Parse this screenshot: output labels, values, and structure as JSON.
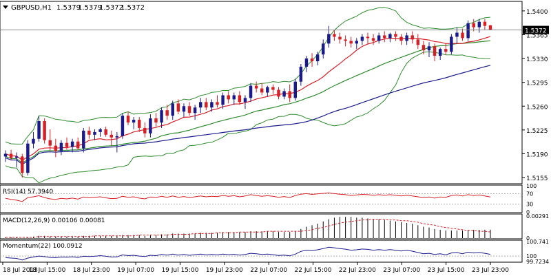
{
  "chart_data": {
    "type": "candlestick",
    "symbol": "GBPUSD,H1",
    "ohlc_header": [
      "1.5379",
      "1.5379",
      "1.5372",
      "1.5372"
    ],
    "last_price_label": "1.5372",
    "y_ticks": [
      "1.5400",
      "1.5365",
      "1.5330",
      "1.5295",
      "1.5260",
      "1.5225",
      "1.5190",
      "1.5155"
    ],
    "ylim": [
      1.5148,
      1.5412
    ],
    "time_labels": [
      "18 Jul 2013",
      "18 Jul 15:00",
      "18 Jul 23:00",
      "19 Jul 07:00",
      "19 Jul 15:00",
      "19 Jul 23:00",
      "22 Jul 07:00",
      "22 Jul 15:00",
      "22 Jul 23:00",
      "23 Jul 07:00",
      "23 Jul 15:00",
      "23 Jul 23:00"
    ],
    "candles": [
      {
        "o": 1.5186,
        "h": 1.5195,
        "l": 1.5178,
        "c": 1.519
      },
      {
        "o": 1.519,
        "h": 1.5196,
        "l": 1.518,
        "c": 1.5184
      },
      {
        "o": 1.5184,
        "h": 1.5192,
        "l": 1.517,
        "c": 1.5186
      },
      {
        "o": 1.5186,
        "h": 1.519,
        "l": 1.5155,
        "c": 1.5162
      },
      {
        "o": 1.5162,
        "h": 1.521,
        "l": 1.5158,
        "c": 1.5205
      },
      {
        "o": 1.5205,
        "h": 1.5222,
        "l": 1.5198,
        "c": 1.5212
      },
      {
        "o": 1.5212,
        "h": 1.5245,
        "l": 1.5208,
        "c": 1.5238
      },
      {
        "o": 1.5238,
        "h": 1.5242,
        "l": 1.5205,
        "c": 1.521
      },
      {
        "o": 1.521,
        "h": 1.5226,
        "l": 1.5195,
        "c": 1.5202
      },
      {
        "o": 1.5202,
        "h": 1.5212,
        "l": 1.5185,
        "c": 1.5194
      },
      {
        "o": 1.5194,
        "h": 1.521,
        "l": 1.5188,
        "c": 1.5206
      },
      {
        "o": 1.5206,
        "h": 1.5214,
        "l": 1.5196,
        "c": 1.52
      },
      {
        "o": 1.52,
        "h": 1.5212,
        "l": 1.5192,
        "c": 1.5208
      },
      {
        "o": 1.5208,
        "h": 1.5214,
        "l": 1.5196,
        "c": 1.5198
      },
      {
        "o": 1.5198,
        "h": 1.5228,
        "l": 1.5192,
        "c": 1.5224
      },
      {
        "o": 1.5224,
        "h": 1.523,
        "l": 1.5212,
        "c": 1.5218
      },
      {
        "o": 1.5218,
        "h": 1.5226,
        "l": 1.521,
        "c": 1.5222
      },
      {
        "o": 1.5222,
        "h": 1.5228,
        "l": 1.5215,
        "c": 1.5226
      },
      {
        "o": 1.5226,
        "h": 1.523,
        "l": 1.5215,
        "c": 1.5218
      },
      {
        "o": 1.5218,
        "h": 1.5224,
        "l": 1.5202,
        "c": 1.5214
      },
      {
        "o": 1.5214,
        "h": 1.5222,
        "l": 1.5192,
        "c": 1.5216
      },
      {
        "o": 1.5216,
        "h": 1.525,
        "l": 1.5212,
        "c": 1.5246
      },
      {
        "o": 1.5246,
        "h": 1.5252,
        "l": 1.5232,
        "c": 1.5236
      },
      {
        "o": 1.5236,
        "h": 1.5244,
        "l": 1.5226,
        "c": 1.524
      },
      {
        "o": 1.524,
        "h": 1.5244,
        "l": 1.5222,
        "c": 1.5228
      },
      {
        "o": 1.5228,
        "h": 1.5236,
        "l": 1.5214,
        "c": 1.522
      },
      {
        "o": 1.522,
        "h": 1.5248,
        "l": 1.5214,
        "c": 1.5242
      },
      {
        "o": 1.5242,
        "h": 1.525,
        "l": 1.523,
        "c": 1.5236
      },
      {
        "o": 1.5236,
        "h": 1.5258,
        "l": 1.5228,
        "c": 1.5254
      },
      {
        "o": 1.5254,
        "h": 1.5262,
        "l": 1.524,
        "c": 1.5246
      },
      {
        "o": 1.5246,
        "h": 1.5268,
        "l": 1.524,
        "c": 1.5264
      },
      {
        "o": 1.5264,
        "h": 1.527,
        "l": 1.5248,
        "c": 1.5252
      },
      {
        "o": 1.5252,
        "h": 1.5264,
        "l": 1.5244,
        "c": 1.526
      },
      {
        "o": 1.526,
        "h": 1.5266,
        "l": 1.5246,
        "c": 1.525
      },
      {
        "o": 1.525,
        "h": 1.5262,
        "l": 1.524,
        "c": 1.5258
      },
      {
        "o": 1.5258,
        "h": 1.5272,
        "l": 1.525,
        "c": 1.5266
      },
      {
        "o": 1.5266,
        "h": 1.5272,
        "l": 1.5254,
        "c": 1.5258
      },
      {
        "o": 1.5258,
        "h": 1.527,
        "l": 1.5252,
        "c": 1.5266
      },
      {
        "o": 1.5266,
        "h": 1.5276,
        "l": 1.5258,
        "c": 1.5262
      },
      {
        "o": 1.5262,
        "h": 1.528,
        "l": 1.5256,
        "c": 1.5276
      },
      {
        "o": 1.5276,
        "h": 1.5282,
        "l": 1.5264,
        "c": 1.527
      },
      {
        "o": 1.527,
        "h": 1.528,
        "l": 1.5262,
        "c": 1.5276
      },
      {
        "o": 1.5276,
        "h": 1.5282,
        "l": 1.5262,
        "c": 1.5266
      },
      {
        "o": 1.5266,
        "h": 1.5276,
        "l": 1.5256,
        "c": 1.5272
      },
      {
        "o": 1.5272,
        "h": 1.5294,
        "l": 1.5266,
        "c": 1.529
      },
      {
        "o": 1.529,
        "h": 1.5296,
        "l": 1.528,
        "c": 1.5286
      },
      {
        "o": 1.5286,
        "h": 1.5294,
        "l": 1.5276,
        "c": 1.528
      },
      {
        "o": 1.528,
        "h": 1.529,
        "l": 1.5274,
        "c": 1.5288
      },
      {
        "o": 1.5288,
        "h": 1.5292,
        "l": 1.5278,
        "c": 1.5284
      },
      {
        "o": 1.5284,
        "h": 1.5288,
        "l": 1.527,
        "c": 1.5274
      },
      {
        "o": 1.5274,
        "h": 1.5286,
        "l": 1.527,
        "c": 1.5282
      },
      {
        "o": 1.5282,
        "h": 1.5292,
        "l": 1.5266,
        "c": 1.5272
      },
      {
        "o": 1.5272,
        "h": 1.53,
        "l": 1.5268,
        "c": 1.5296
      },
      {
        "o": 1.5296,
        "h": 1.5322,
        "l": 1.529,
        "c": 1.5318
      },
      {
        "o": 1.5318,
        "h": 1.5334,
        "l": 1.531,
        "c": 1.533
      },
      {
        "o": 1.533,
        "h": 1.5338,
        "l": 1.5318,
        "c": 1.5326
      },
      {
        "o": 1.5326,
        "h": 1.534,
        "l": 1.532,
        "c": 1.5336
      },
      {
        "o": 1.5336,
        "h": 1.5358,
        "l": 1.533,
        "c": 1.5352
      },
      {
        "o": 1.5352,
        "h": 1.5378,
        "l": 1.5346,
        "c": 1.5366
      },
      {
        "o": 1.5366,
        "h": 1.5372,
        "l": 1.5356,
        "c": 1.5362
      },
      {
        "o": 1.5362,
        "h": 1.5368,
        "l": 1.5352,
        "c": 1.5358
      },
      {
        "o": 1.5358,
        "h": 1.5364,
        "l": 1.5348,
        "c": 1.5356
      },
      {
        "o": 1.5356,
        "h": 1.5362,
        "l": 1.5346,
        "c": 1.5352
      },
      {
        "o": 1.5352,
        "h": 1.536,
        "l": 1.5344,
        "c": 1.5356
      },
      {
        "o": 1.5356,
        "h": 1.5366,
        "l": 1.535,
        "c": 1.5362
      },
      {
        "o": 1.5362,
        "h": 1.5368,
        "l": 1.5352,
        "c": 1.536
      },
      {
        "o": 1.536,
        "h": 1.5366,
        "l": 1.535,
        "c": 1.5356
      },
      {
        "o": 1.5356,
        "h": 1.5368,
        "l": 1.5352,
        "c": 1.5364
      },
      {
        "o": 1.5364,
        "h": 1.537,
        "l": 1.5354,
        "c": 1.536
      },
      {
        "o": 1.536,
        "h": 1.5368,
        "l": 1.5354,
        "c": 1.5366
      },
      {
        "o": 1.5366,
        "h": 1.537,
        "l": 1.5356,
        "c": 1.5362
      },
      {
        "o": 1.5362,
        "h": 1.5366,
        "l": 1.535,
        "c": 1.5356
      },
      {
        "o": 1.5356,
        "h": 1.5368,
        "l": 1.535,
        "c": 1.5364
      },
      {
        "o": 1.5364,
        "h": 1.537,
        "l": 1.5352,
        "c": 1.5358
      },
      {
        "o": 1.5358,
        "h": 1.5366,
        "l": 1.5344,
        "c": 1.535
      },
      {
        "o": 1.535,
        "h": 1.5356,
        "l": 1.5336,
        "c": 1.5342
      },
      {
        "o": 1.5342,
        "h": 1.5354,
        "l": 1.5332,
        "c": 1.5348
      },
      {
        "o": 1.5348,
        "h": 1.5352,
        "l": 1.5326,
        "c": 1.5334
      },
      {
        "o": 1.5334,
        "h": 1.5346,
        "l": 1.5328,
        "c": 1.5344
      },
      {
        "o": 1.5344,
        "h": 1.5352,
        "l": 1.5336,
        "c": 1.534
      },
      {
        "o": 1.534,
        "h": 1.5366,
        "l": 1.5336,
        "c": 1.5362
      },
      {
        "o": 1.5362,
        "h": 1.5376,
        "l": 1.5352,
        "c": 1.5368
      },
      {
        "o": 1.5368,
        "h": 1.5374,
        "l": 1.5356,
        "c": 1.536
      },
      {
        "o": 1.536,
        "h": 1.5386,
        "l": 1.5356,
        "c": 1.5382
      },
      {
        "o": 1.5382,
        "h": 1.5388,
        "l": 1.537,
        "c": 1.5376
      },
      {
        "o": 1.5376,
        "h": 1.5388,
        "l": 1.5368,
        "c": 1.5384
      },
      {
        "o": 1.5384,
        "h": 1.5388,
        "l": 1.5372,
        "c": 1.5378
      },
      {
        "o": 1.5379,
        "h": 1.5379,
        "l": 1.5372,
        "c": 1.5372
      }
    ],
    "indicator_colors": {
      "bull_candle": "#1a1a8c",
      "bear_candle": "#d61f26",
      "sma_fast": "#d61f26",
      "sma_mid": "#2e8b2e",
      "sma_slow": "#1a1a8c",
      "bollinger": "#2e8b2e"
    },
    "rsi": {
      "label": "RSI(14) 57.3940",
      "scale_labels": [
        "100",
        "70",
        "30",
        "0"
      ],
      "values": [
        52,
        48,
        45,
        40,
        55,
        58,
        62,
        55,
        50,
        48,
        52,
        50,
        53,
        49,
        57,
        54,
        56,
        58,
        54,
        51,
        52,
        60,
        56,
        58,
        53,
        50,
        57,
        55,
        60,
        56,
        61,
        56,
        59,
        55,
        58,
        61,
        58,
        60,
        59,
        63,
        60,
        62,
        58,
        61,
        66,
        63,
        60,
        62,
        60,
        56,
        59,
        55,
        63,
        68,
        70,
        67,
        69,
        71,
        73,
        70,
        68,
        66,
        63,
        65,
        67,
        66,
        64,
        66,
        64,
        66,
        64,
        61,
        64,
        61,
        58,
        55,
        57,
        53,
        57,
        56,
        63,
        65,
        61,
        66,
        63,
        65,
        61,
        57
      ]
    },
    "macd": {
      "label": "MACD(12,26,9) 0.00106 0.00081",
      "scale_labels": [
        "0.00291",
        "0"
      ],
      "main": [
        0.0001,
        0.0001,
        0.0001,
        0.0,
        0.0001,
        0.0002,
        0.0003,
        0.0003,
        0.0002,
        0.0002,
        0.0002,
        0.0002,
        0.0002,
        0.0002,
        0.0003,
        0.0003,
        0.0003,
        0.0003,
        0.0003,
        0.0003,
        0.0003,
        0.0004,
        0.0004,
        0.0004,
        0.0004,
        0.0003,
        0.0004,
        0.0004,
        0.0005,
        0.0005,
        0.0006,
        0.0006,
        0.0006,
        0.0006,
        0.0006,
        0.0007,
        0.0007,
        0.0007,
        0.0007,
        0.0008,
        0.0008,
        0.0008,
        0.0008,
        0.0008,
        0.0009,
        0.0009,
        0.0009,
        0.0009,
        0.0009,
        0.0008,
        0.0008,
        0.0008,
        0.0009,
        0.0012,
        0.0015,
        0.0017,
        0.0019,
        0.0022,
        0.0025,
        0.0027,
        0.0028,
        0.0028,
        0.0028,
        0.0027,
        0.0027,
        0.0026,
        0.0025,
        0.0025,
        0.0024,
        0.0023,
        0.0022,
        0.0021,
        0.002,
        0.0019,
        0.0017,
        0.0015,
        0.0014,
        0.0012,
        0.0011,
        0.001,
        0.001,
        0.001,
        0.001,
        0.0011,
        0.0011,
        0.0011,
        0.0011,
        0.0011
      ],
      "signal": [
        0.0001,
        0.0001,
        0.0001,
        0.0001,
        0.0001,
        0.0001,
        0.0002,
        0.0002,
        0.0002,
        0.0002,
        0.0002,
        0.0002,
        0.0002,
        0.0002,
        0.0002,
        0.0002,
        0.0003,
        0.0003,
        0.0003,
        0.0003,
        0.0003,
        0.0003,
        0.0003,
        0.0003,
        0.0004,
        0.0004,
        0.0004,
        0.0004,
        0.0004,
        0.0004,
        0.0005,
        0.0005,
        0.0005,
        0.0005,
        0.0006,
        0.0006,
        0.0006,
        0.0006,
        0.0007,
        0.0007,
        0.0007,
        0.0007,
        0.0008,
        0.0008,
        0.0008,
        0.0008,
        0.0008,
        0.0009,
        0.0009,
        0.0009,
        0.0009,
        0.0009,
        0.0009,
        0.0009,
        0.001,
        0.0011,
        0.0013,
        0.0014,
        0.0016,
        0.0018,
        0.002,
        0.0021,
        0.0022,
        0.0023,
        0.0024,
        0.0024,
        0.0025,
        0.0025,
        0.0025,
        0.0024,
        0.0024,
        0.0023,
        0.0023,
        0.0022,
        0.0021,
        0.0019,
        0.0018,
        0.0017,
        0.0015,
        0.0014,
        0.0013,
        0.0012,
        0.0011,
        0.001,
        0.001,
        0.0009,
        0.0009,
        0.0008
      ]
    },
    "momentum": {
      "label": "Momentum(22) 100.0912",
      "scale_labels": [
        "100.741",
        "100",
        "99.7234"
      ],
      "values": [
        99.92,
        99.9,
        99.88,
        99.8,
        99.9,
        99.95,
        100.0,
        99.97,
        99.93,
        99.92,
        99.95,
        99.94,
        99.96,
        99.93,
        99.99,
        99.98,
        99.99,
        100.02,
        99.99,
        99.95,
        99.96,
        100.06,
        100.02,
        100.04,
        100.0,
        99.98,
        100.04,
        100.02,
        100.08,
        100.05,
        100.1,
        100.05,
        100.08,
        100.04,
        100.07,
        100.1,
        100.06,
        100.08,
        100.06,
        100.1,
        100.07,
        100.09,
        100.05,
        100.08,
        100.14,
        100.12,
        100.08,
        100.1,
        100.07,
        100.03,
        100.05,
        100.01,
        100.1,
        100.24,
        100.3,
        100.28,
        100.32,
        100.38,
        100.45,
        100.42,
        100.38,
        100.35,
        100.3,
        100.32,
        100.36,
        100.34,
        100.3,
        100.33,
        100.3,
        100.33,
        100.3,
        100.26,
        100.3,
        100.25,
        100.18,
        100.12,
        100.14,
        100.08,
        100.12,
        100.06,
        100.16,
        100.18,
        100.12,
        100.2,
        100.16,
        100.18,
        100.14,
        100.09
      ]
    }
  }
}
